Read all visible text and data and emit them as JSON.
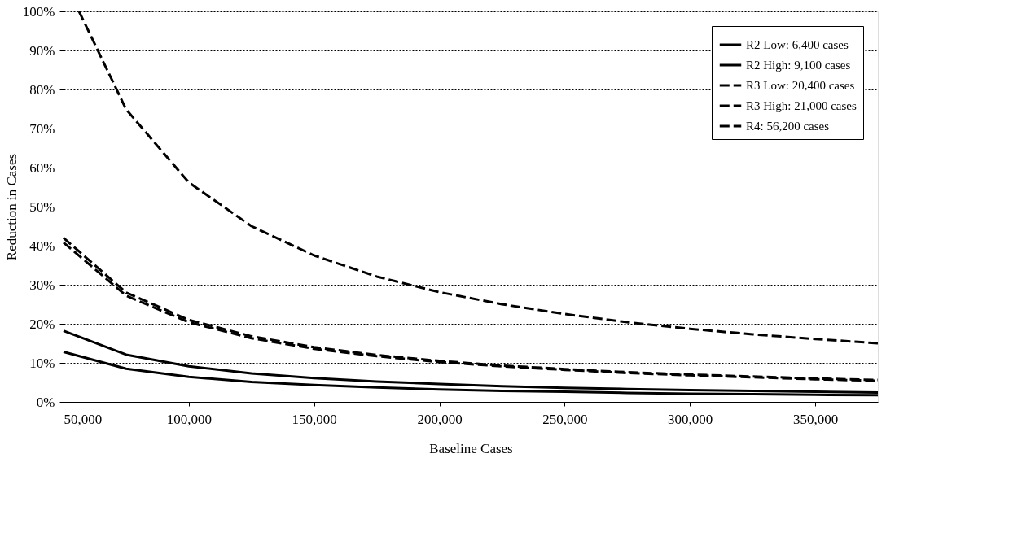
{
  "chart_data": {
    "type": "line",
    "xlabel": "Baseline Cases",
    "ylabel": "Reduction in Cases",
    "x": [
      50000,
      75000,
      100000,
      125000,
      150000,
      175000,
      200000,
      225000,
      250000,
      275000,
      300000,
      325000,
      350000,
      375000
    ],
    "xlim": [
      50000,
      375000
    ],
    "xticks": [
      {
        "value": 50000,
        "label": "50,000"
      },
      {
        "value": 100000,
        "label": "100,000"
      },
      {
        "value": 150000,
        "label": "150,000"
      },
      {
        "value": 200000,
        "label": "200,000"
      },
      {
        "value": 250000,
        "label": "250,000"
      },
      {
        "value": 300000,
        "label": "300,000"
      },
      {
        "value": 350000,
        "label": "350,000"
      }
    ],
    "ylim": [
      0,
      100
    ],
    "yticks": [
      {
        "value": 0,
        "label": "0%"
      },
      {
        "value": 10,
        "label": "10%"
      },
      {
        "value": 20,
        "label": "20%"
      },
      {
        "value": 30,
        "label": "30%"
      },
      {
        "value": 40,
        "label": "40%"
      },
      {
        "value": 50,
        "label": "50%"
      },
      {
        "value": 60,
        "label": "60%"
      },
      {
        "value": 70,
        "label": "70%"
      },
      {
        "value": 80,
        "label": "80%"
      },
      {
        "value": 90,
        "label": "90%"
      },
      {
        "value": 100,
        "label": "100%"
      }
    ],
    "grid": "y",
    "legend": "top right",
    "marker": "none",
    "series": [
      {
        "name": "R2 Low: 6,400 cases",
        "color": "#000000",
        "line_style": "solid",
        "values": [
          12.8,
          8.5,
          6.4,
          5.1,
          4.3,
          3.7,
          3.2,
          2.8,
          2.6,
          2.3,
          2.1,
          2.0,
          1.8,
          1.7
        ]
      },
      {
        "name": "R2 High: 9,100 cases",
        "color": "#000000",
        "line_style": "solid",
        "values": [
          18.2,
          12.1,
          9.1,
          7.3,
          6.1,
          5.2,
          4.6,
          4.0,
          3.6,
          3.3,
          3.0,
          2.8,
          2.6,
          2.4
        ]
      },
      {
        "name": "R3 Low: 20,400 cases",
        "color": "#000000",
        "line_style": "dashed",
        "values": [
          40.8,
          27.2,
          20.4,
          16.3,
          13.6,
          11.7,
          10.2,
          9.1,
          8.2,
          7.4,
          6.8,
          6.3,
          5.8,
          5.4
        ]
      },
      {
        "name": "R3 High: 21,000 cases",
        "color": "#000000",
        "line_style": "dashed",
        "values": [
          42,
          28,
          21,
          16.8,
          14,
          12,
          10.5,
          9.3,
          8.4,
          7.6,
          7.0,
          6.5,
          6.0,
          5.6
        ]
      },
      {
        "name": "R4: 56,200 cases",
        "color": "#000000",
        "line_style": "dashed",
        "x": [
          56200,
          75000,
          100000,
          125000,
          150000,
          175000,
          200000,
          225000,
          250000,
          275000,
          300000,
          325000,
          350000,
          375000
        ],
        "values": [
          100,
          74.9,
          56.2,
          45,
          37.5,
          32.1,
          28.1,
          25,
          22.5,
          20.4,
          18.7,
          17.3,
          16.1,
          15.0
        ]
      }
    ]
  }
}
